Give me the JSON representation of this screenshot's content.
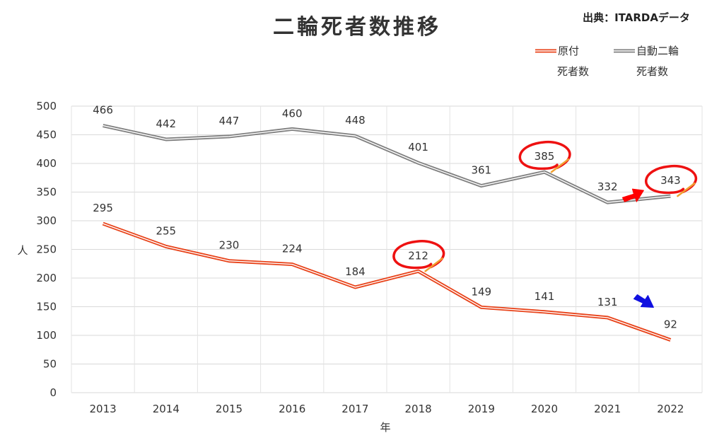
{
  "chart_data": {
    "type": "line",
    "title": "二輪死者数推移",
    "source": "出典：ITARDAデータ",
    "xlabel": "年",
    "ylabel": "人",
    "ylim": [
      0,
      500
    ],
    "yticks": [
      "0",
      "50",
      "100",
      "150",
      "200",
      "250",
      "300",
      "350",
      "400",
      "450",
      "500"
    ],
    "categories": [
      "2013",
      "2014",
      "2015",
      "2016",
      "2017",
      "2018",
      "2019",
      "2020",
      "2021",
      "2022"
    ],
    "grid": true,
    "legend_position": "top-right",
    "series": [
      {
        "key": "genzuki",
        "name": "原付",
        "name_line2": "死者数",
        "color": "#e8431a",
        "values": [
          295,
          255,
          230,
          224,
          184,
          212,
          149,
          141,
          131,
          92
        ]
      },
      {
        "key": "jidounirin",
        "name": "自動二輪",
        "name_line2": "死者数",
        "color": "#808080",
        "values": [
          466,
          442,
          447,
          460,
          448,
          401,
          361,
          385,
          332,
          343
        ]
      }
    ],
    "annotations": [
      {
        "type": "circle",
        "series": "genzuki",
        "category": "2018"
      },
      {
        "type": "circle",
        "series": "jidounirin",
        "category": "2020"
      },
      {
        "type": "circle",
        "series": "jidounirin",
        "category": "2022"
      },
      {
        "type": "arrow",
        "color": "#ff0000",
        "target_series": "jidounirin",
        "target_category": "2022"
      },
      {
        "type": "arrow",
        "color": "#1010e0",
        "target_series": "genzuki",
        "target_category": "2022"
      }
    ]
  }
}
